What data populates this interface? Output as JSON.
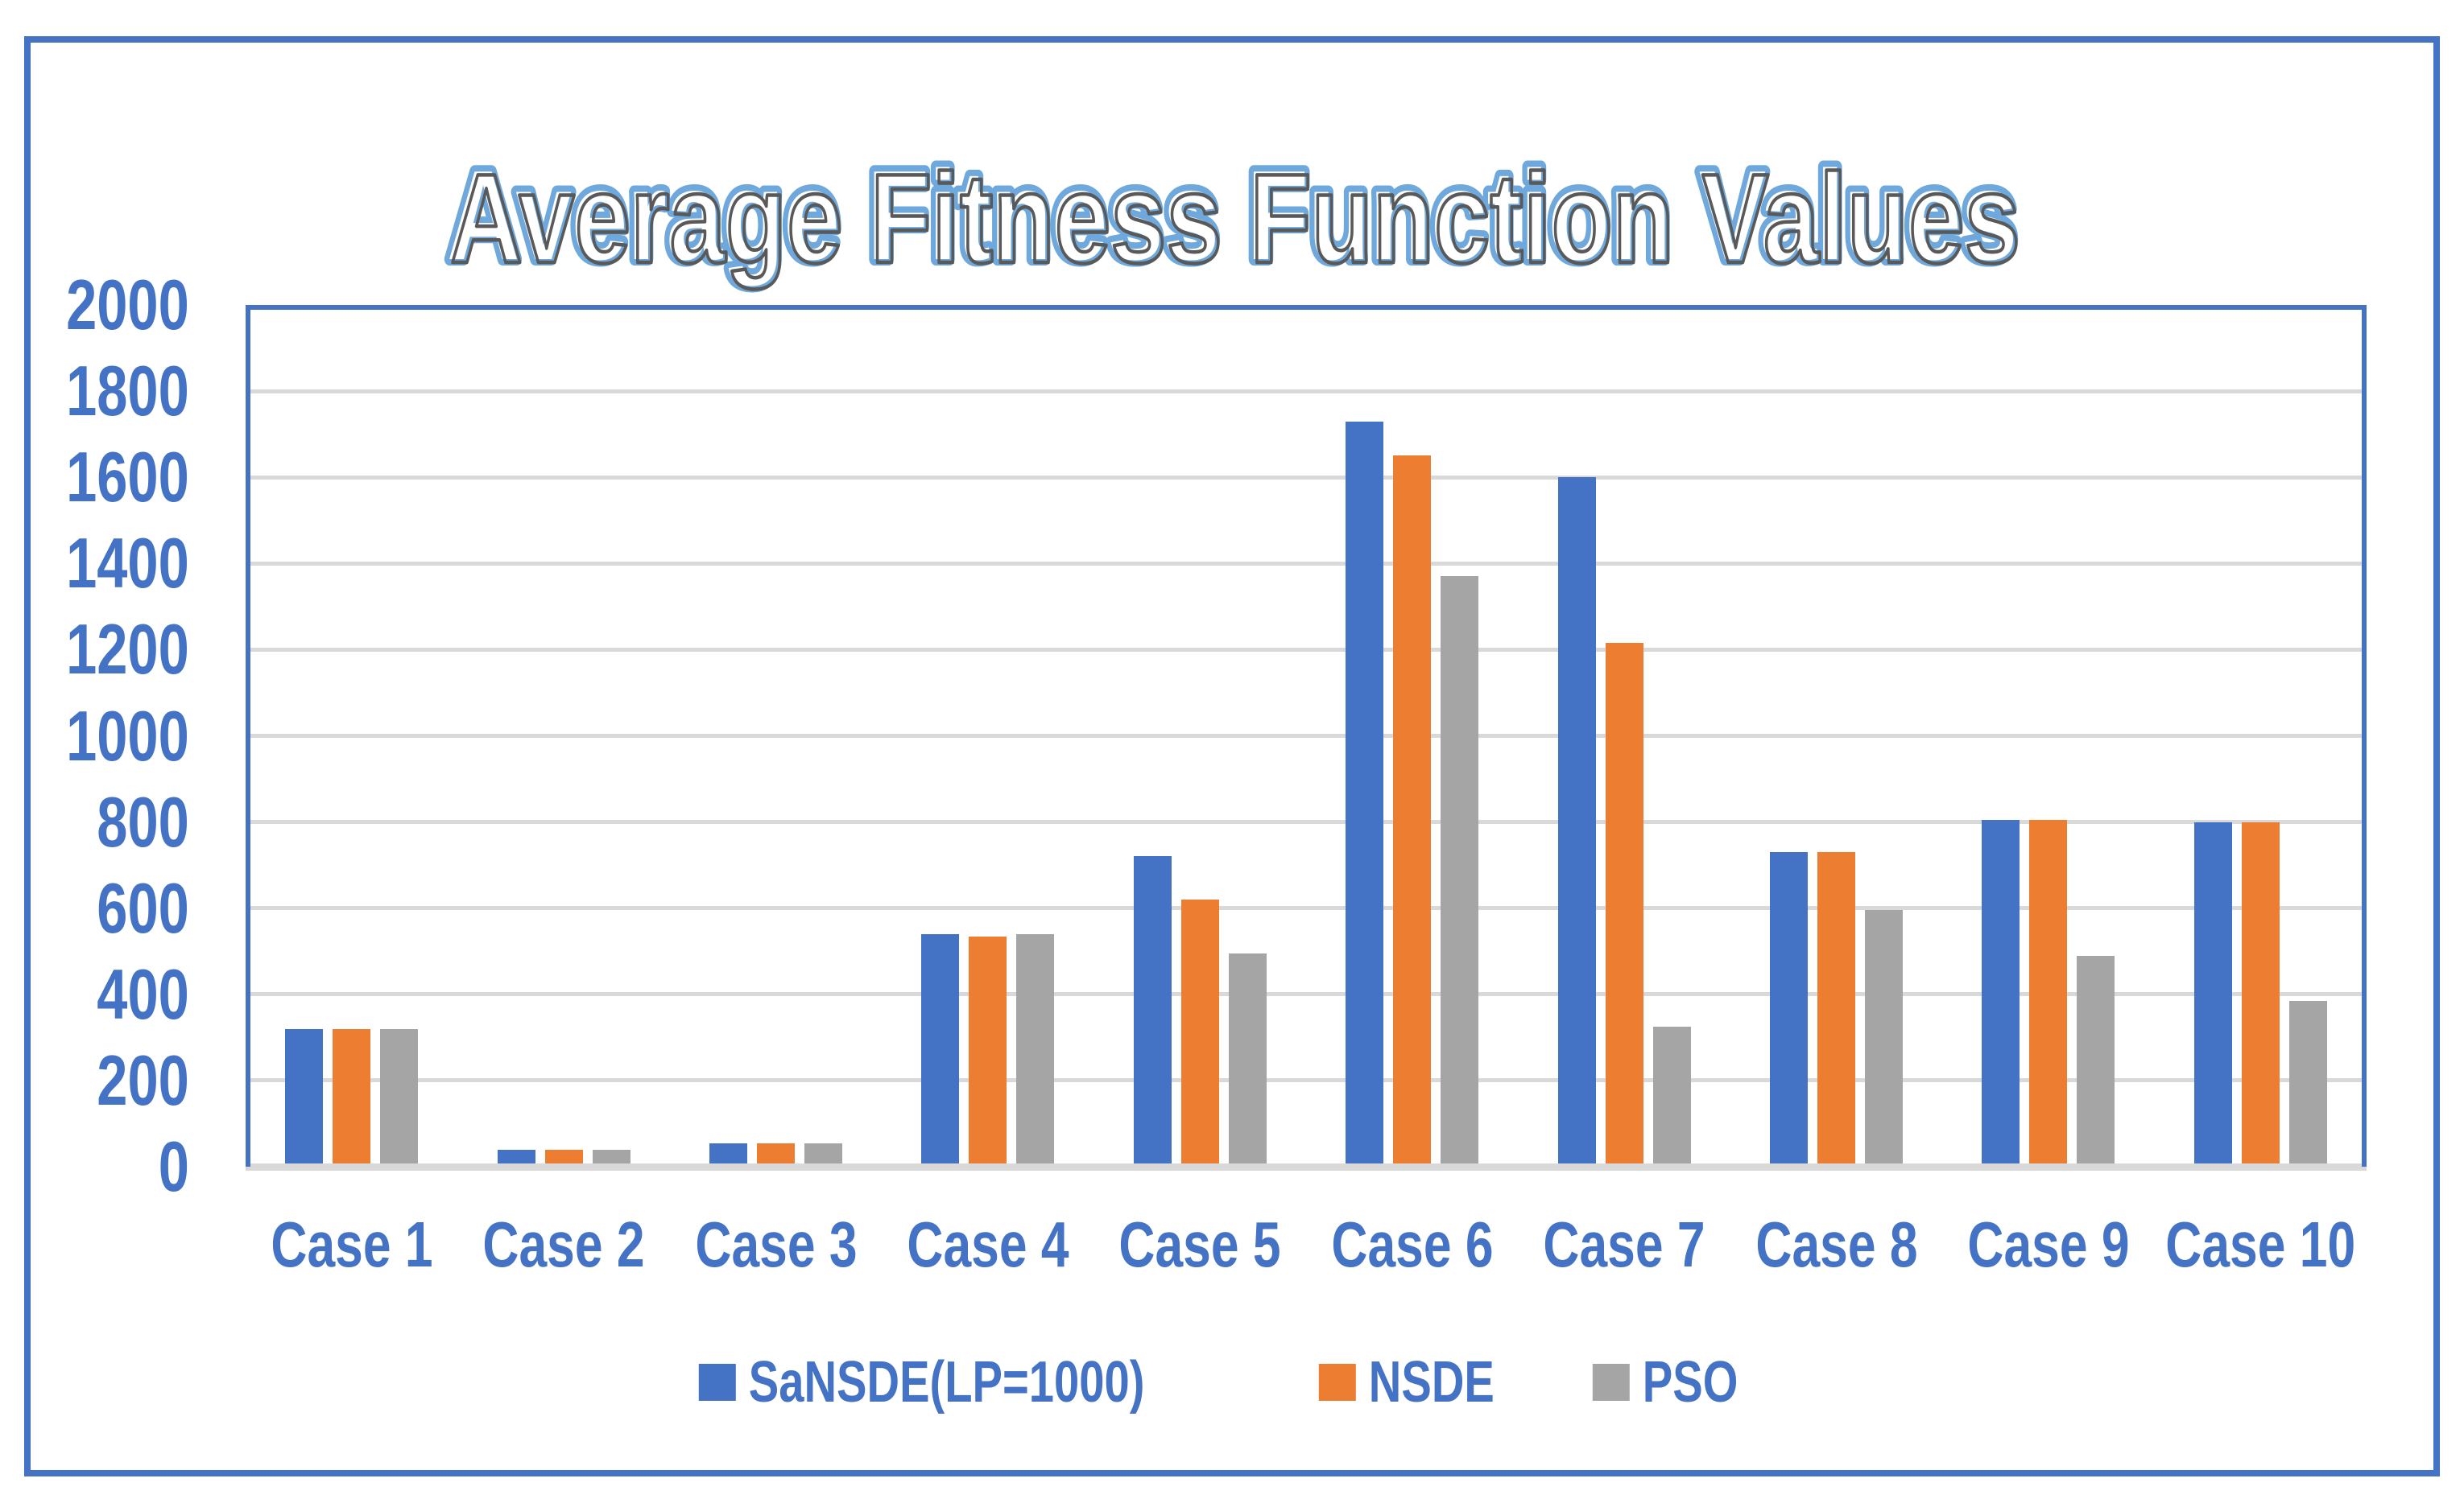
{
  "title": "Average Fitness Function Values",
  "colors": {
    "series_blue": "#4472C4",
    "series_orange": "#ED7D31",
    "series_gray": "#A5A5A5",
    "gridline": "#D9D9D9",
    "plot_border": "#4472C4",
    "outer_border": "#4472C4",
    "axis_label": "#4472C4",
    "title_outline": "#6FA8DC",
    "title_inner_stroke": "#595959",
    "title_fill": "#FFFFFF"
  },
  "chart_data": {
    "type": "bar",
    "title": "Average Fitness Function Values",
    "categories": [
      "Case 1",
      "Case 2",
      "Case 3",
      "Case 4",
      "Case 5",
      "Case 6",
      "Case 7",
      "Case 8",
      "Case 9",
      "Case 10"
    ],
    "series": [
      {
        "name": "SaNSDE(LP=1000)",
        "color": "#4472C4",
        "values": [
          320,
          40,
          55,
          540,
          720,
          1730,
          1600,
          730,
          805,
          800
        ]
      },
      {
        "name": "NSDE",
        "color": "#ED7D31",
        "values": [
          320,
          40,
          55,
          535,
          620,
          1650,
          1215,
          730,
          805,
          800
        ]
      },
      {
        "name": "PSO",
        "color": "#A5A5A5",
        "values": [
          320,
          40,
          55,
          540,
          495,
          1370,
          325,
          595,
          490,
          385
        ]
      }
    ],
    "xlabel": "",
    "ylabel": "",
    "ylim": [
      0,
      2000
    ],
    "ytick_step": 200,
    "yticks": [
      "0",
      "200",
      "400",
      "600",
      "800",
      "1000",
      "1200",
      "1400",
      "1600",
      "1800",
      "2000"
    ],
    "grid": true,
    "legend_position": "bottom"
  }
}
